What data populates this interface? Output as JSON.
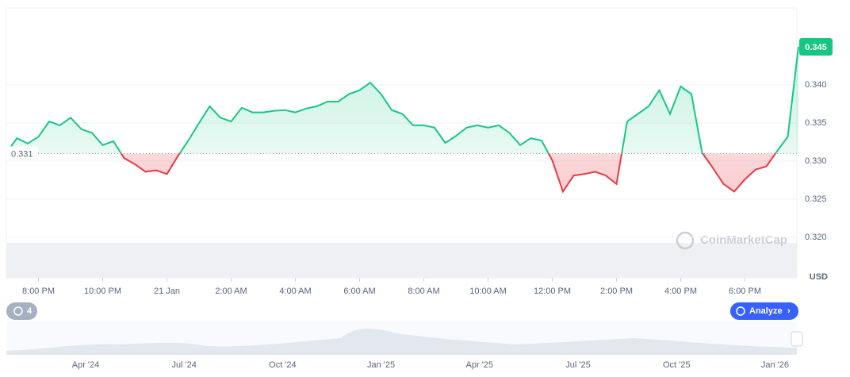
{
  "chart_data": {
    "type": "line",
    "values": [
      0.3311,
      0.333,
      0.3323,
      0.3332,
      0.3352,
      0.3347,
      0.3357,
      0.3342,
      0.3337,
      0.3321,
      0.3326,
      0.3304,
      0.3296,
      0.3286,
      0.3288,
      0.3283,
      0.3306,
      0.3327,
      0.335,
      0.3372,
      0.3357,
      0.3352,
      0.337,
      0.3364,
      0.3364,
      0.3366,
      0.3367,
      0.3364,
      0.3369,
      0.3372,
      0.3378,
      0.3378,
      0.3388,
      0.3393,
      0.3403,
      0.3388,
      0.3367,
      0.3362,
      0.3347,
      0.3347,
      0.3344,
      0.3324,
      0.3333,
      0.3344,
      0.3347,
      0.3344,
      0.3347,
      0.3337,
      0.3321,
      0.333,
      0.3327,
      0.3301,
      0.326,
      0.3281,
      0.3283,
      0.3286,
      0.3281,
      0.327,
      0.3352,
      0.3362,
      0.3372,
      0.3393,
      0.3362,
      0.3398,
      0.3388,
      0.3311,
      0.3291,
      0.327,
      0.326,
      0.3276,
      0.3289,
      0.3293,
      0.3313,
      0.3332,
      0.345
    ],
    "baseline": 0.331,
    "up_color": "#16c784",
    "down_color": "#ea3943",
    "xlim": [
      0,
      74
    ],
    "xticks": [
      {
        "value": 3,
        "label": "8:00 PM"
      },
      {
        "value": 9,
        "label": "10:00 PM"
      },
      {
        "value": 15,
        "label": "21 Jan"
      },
      {
        "value": 21,
        "label": "2:00 AM"
      },
      {
        "value": 27,
        "label": "4:00 AM"
      },
      {
        "value": 33,
        "label": "6:00 AM"
      },
      {
        "value": 39,
        "label": "8:00 AM"
      },
      {
        "value": 45,
        "label": "10:00 AM"
      },
      {
        "value": 51,
        "label": "12:00 PM"
      },
      {
        "value": 57,
        "label": "2:00 PM"
      },
      {
        "value": 63,
        "label": "4:00 PM"
      },
      {
        "value": 69,
        "label": "6:00 PM"
      }
    ],
    "ylim": [
      0.315,
      0.35
    ],
    "yticks": [
      {
        "value": 0.32,
        "label": "0.320"
      },
      0.325,
      {
        "value": 0.33,
        "label": "0.330"
      },
      0.335,
      {
        "value": 0.34,
        "label": "0.340"
      }
    ],
    "y_unit": "USD",
    "grid": true
  },
  "ui": {
    "watermark": "CoinMarketCap",
    "history_count": "4",
    "analyze": "Analyze",
    "navigator_labels": [
      "Apr '24",
      "Jul '24",
      "Oct '24",
      "Jan '25",
      "Apr '25",
      "Jul '25",
      "Oct '25",
      "Jan '26"
    ]
  }
}
